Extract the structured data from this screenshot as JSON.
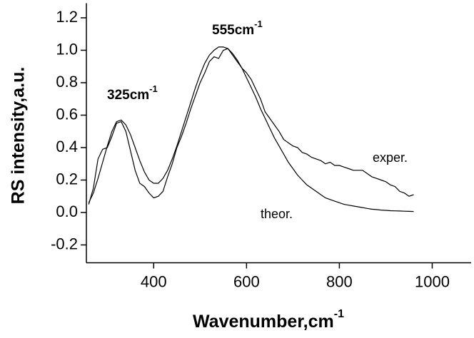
{
  "chart_data": {
    "type": "line",
    "x_label": "Wavenumber,cm",
    "x_label_sup": "-1",
    "y_label": "RS intensity,a.u.",
    "annotations": [
      {
        "text": "325cm",
        "sup": "-1"
      },
      {
        "text": "555cm",
        "sup": "-1"
      },
      {
        "text": "exper."
      },
      {
        "text": "theor."
      }
    ],
    "xlim": [
      255,
      1090
    ],
    "xticks": [
      400,
      600,
      800,
      1000
    ],
    "ylim": [
      -0.31,
      1.29
    ],
    "yticks": [
      -0.2,
      {
        "value": 0,
        "label": "0.0"
      },
      0.2,
      0.4,
      0.6,
      0.8,
      {
        "value": 1,
        "label": "1.0"
      },
      1.2
    ],
    "x": [
      260,
      270,
      280,
      290,
      300,
      310,
      320,
      330,
      340,
      350,
      360,
      370,
      380,
      390,
      400,
      410,
      420,
      430,
      440,
      450,
      460,
      470,
      480,
      490,
      500,
      510,
      520,
      530,
      540,
      550,
      560,
      570,
      580,
      590,
      600,
      610,
      620,
      630,
      640,
      650,
      660,
      670,
      680,
      690,
      700,
      710,
      720,
      730,
      740,
      750,
      760,
      770,
      780,
      790,
      800,
      810,
      820,
      830,
      840,
      850,
      860,
      870,
      880,
      890,
      900,
      910,
      920,
      930,
      940,
      950,
      960
    ],
    "series": [
      {
        "color": "#000000",
        "values": [
          0.06,
          0.12,
          0.21,
          0.31,
          0.41,
          0.5,
          0.56,
          0.57,
          0.54,
          0.48,
          0.4,
          0.32,
          0.25,
          0.2,
          0.18,
          0.18,
          0.21,
          0.26,
          0.33,
          0.41,
          0.5,
          0.59,
          0.68,
          0.77,
          0.85,
          0.92,
          0.97,
          1.0,
          1.02,
          1.02,
          1.01,
          0.98,
          0.94,
          0.89,
          0.83,
          0.77,
          0.71,
          0.64,
          0.58,
          0.52,
          0.46,
          0.41,
          0.36,
          0.31,
          0.27,
          0.23,
          0.2,
          0.17,
          0.15,
          0.13,
          0.11,
          0.09,
          0.08,
          0.07,
          0.06,
          0.05,
          0.045,
          0.04,
          0.035,
          0.03,
          0.025,
          0.02,
          0.018,
          0.015,
          0.013,
          0.011,
          0.01,
          0.009,
          0.008,
          0.007,
          0.006
        ]
      },
      {
        "color": "#000000",
        "values": [
          0.05,
          0.15,
          0.33,
          0.39,
          0.4,
          0.47,
          0.55,
          0.56,
          0.5,
          0.38,
          0.26,
          0.18,
          0.16,
          0.12,
          0.09,
          0.1,
          0.13,
          0.22,
          0.3,
          0.4,
          0.47,
          0.55,
          0.64,
          0.72,
          0.8,
          0.86,
          0.93,
          0.96,
          0.95,
          1.0,
          1.01,
          0.97,
          0.93,
          0.89,
          0.86,
          0.82,
          0.76,
          0.7,
          0.62,
          0.58,
          0.54,
          0.5,
          0.45,
          0.43,
          0.41,
          0.4,
          0.37,
          0.36,
          0.34,
          0.33,
          0.32,
          0.3,
          0.31,
          0.29,
          0.29,
          0.28,
          0.27,
          0.26,
          0.26,
          0.26,
          0.24,
          0.22,
          0.21,
          0.2,
          0.19,
          0.17,
          0.16,
          0.13,
          0.12,
          0.1,
          0.11
        ]
      }
    ]
  }
}
